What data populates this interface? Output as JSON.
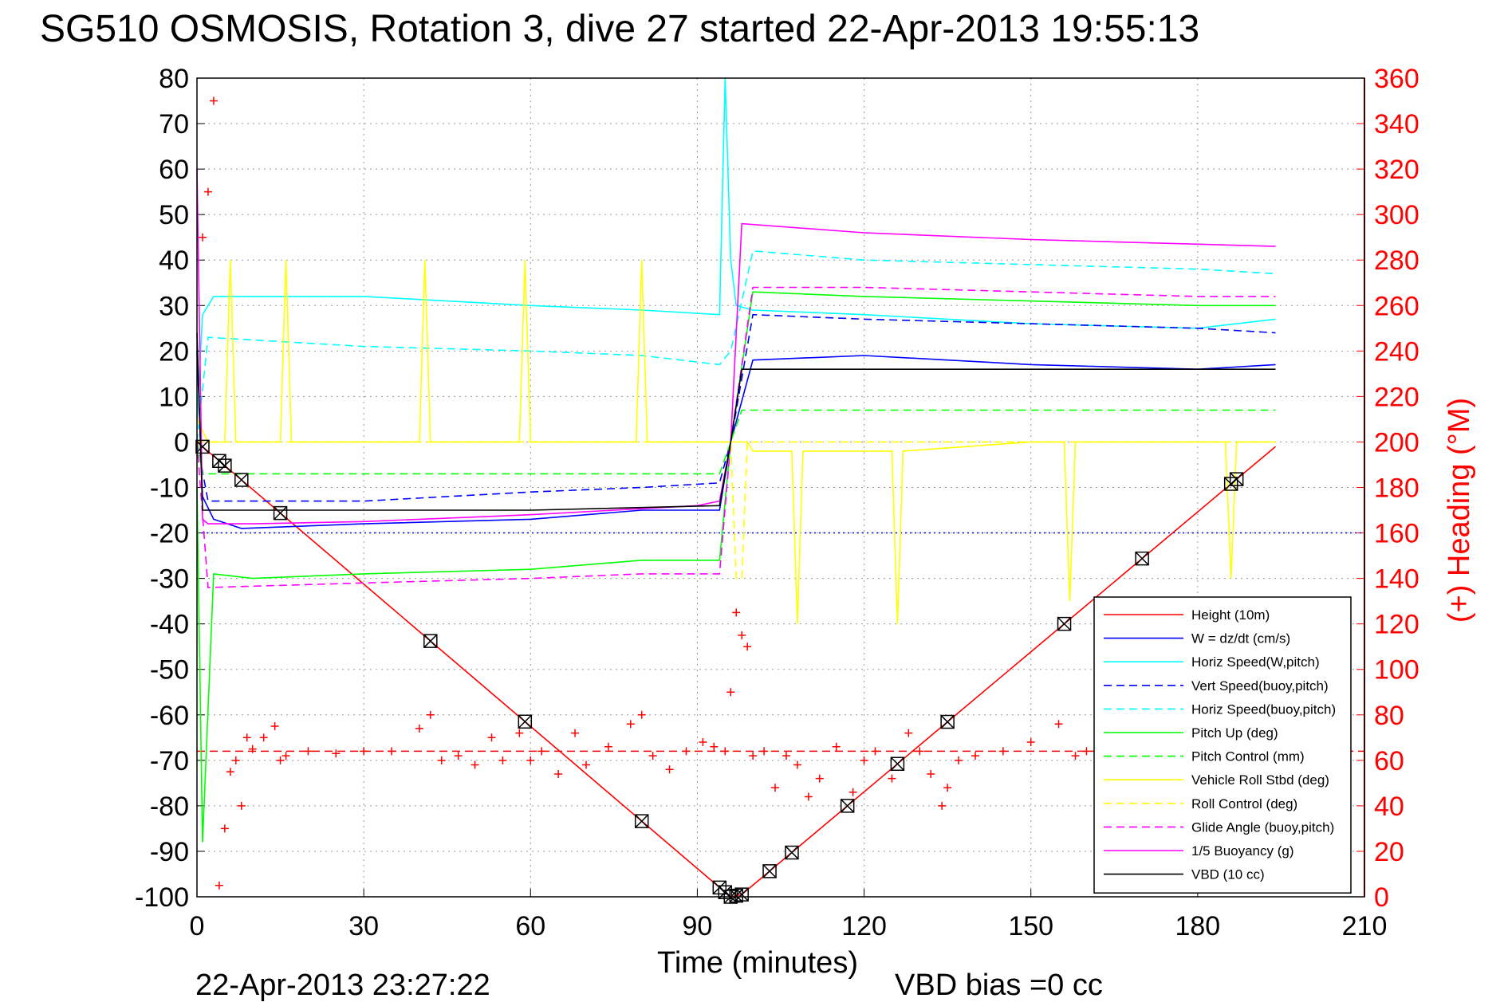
{
  "title": "SG510 OSMOSIS, Rotation 3, dive 27 started 22-Apr-2013 19:55:13",
  "footer": {
    "timestamp": "22-Apr-2013 23:27:22",
    "vbd_bias": "VBD bias =0 cc"
  },
  "colors": {
    "red": "#ff0000",
    "blue": "#0000ff",
    "cyan": "#00ffff",
    "green": "#00ff00",
    "yellow": "#ffff00",
    "magenta": "#ff00ff",
    "black": "#000000",
    "grid": "#888888"
  },
  "chart_data": {
    "type": "line",
    "xlabel": "Time (minutes)",
    "ylabel_right": "(+) Heading (°M)",
    "xlim": [
      0,
      210
    ],
    "ylim": [
      -100,
      80
    ],
    "ylim_right": [
      0,
      360
    ],
    "grid": true,
    "legend_position": "bottom-right",
    "x_ticks": [
      "0",
      "30",
      "60",
      "90",
      "120",
      "150",
      "180",
      "210"
    ],
    "y_ticks": [
      "80",
      "70",
      "60",
      "50",
      "40",
      "30",
      "20",
      "10",
      "0",
      "-10",
      "-20",
      "-30",
      "-40",
      "-50",
      "-60",
      "-70",
      "-80",
      "-90",
      "-100"
    ],
    "y_right_ticks": [
      "360",
      "340",
      "320",
      "300",
      "280",
      "260",
      "240",
      "220",
      "200",
      "180",
      "160",
      "140",
      "120",
      "100",
      "80",
      "60",
      "40",
      "20",
      "0"
    ],
    "legend": [
      {
        "label": "Height (10m)",
        "color": "#ff0000",
        "dash": "solid"
      },
      {
        "label": "W = dz/dt (cm/s)",
        "color": "#0000ff",
        "dash": "solid"
      },
      {
        "label": "Horiz Speed(W,pitch)",
        "color": "#00ffff",
        "dash": "solid"
      },
      {
        "label": "Vert Speed(buoy,pitch)",
        "color": "#0000ff",
        "dash": "dashed"
      },
      {
        "label": "Horiz Speed(buoy,pitch)",
        "color": "#00ffff",
        "dash": "dashed"
      },
      {
        "label": "Pitch Up (deg)",
        "color": "#00ff00",
        "dash": "solid"
      },
      {
        "label": "Pitch Control (mm)",
        "color": "#00ff00",
        "dash": "dashed"
      },
      {
        "label": "Vehicle Roll Stbd (deg)",
        "color": "#ffff00",
        "dash": "solid"
      },
      {
        "label": "Roll Control (deg)",
        "color": "#ffff00",
        "dash": "dashed"
      },
      {
        "label": "Glide Angle (buoy,pitch)",
        "color": "#ff00ff",
        "dash": "dashed"
      },
      {
        "label": "1/5 Buoyancy (g)",
        "color": "#ff00ff",
        "dash": "solid"
      },
      {
        "label": "VBD (10 cc)",
        "color": "#000000",
        "dash": "solid"
      }
    ],
    "series": [
      {
        "name": "Height (10m)",
        "axis": "left",
        "x": [
          0,
          95,
          96,
          98,
          194
        ],
        "y": [
          0,
          -99,
          -100,
          -99.5,
          -1
        ]
      },
      {
        "name": "W = dz/dt (cm/s)",
        "axis": "left",
        "x": [
          0,
          1,
          3,
          8,
          30,
          60,
          80,
          94,
          96,
          100,
          120,
          150,
          180,
          194
        ],
        "y": [
          20,
          -12,
          -17,
          -19,
          -18,
          -17,
          -15,
          -15,
          0,
          18,
          19,
          17,
          16,
          17
        ]
      },
      {
        "name": "Horiz Speed(W,pitch)",
        "axis": "left",
        "x": [
          0,
          1,
          3,
          10,
          30,
          60,
          80,
          94,
          95,
          96,
          97,
          100,
          120,
          150,
          180,
          194
        ],
        "y": [
          5,
          28,
          32,
          32,
          32,
          30,
          29,
          28,
          80,
          40,
          30,
          29,
          28,
          26,
          25,
          27
        ]
      },
      {
        "name": "Vert Speed(buoy,pitch)",
        "axis": "left",
        "x": [
          0,
          2,
          30,
          60,
          80,
          94,
          96,
          100,
          120,
          150,
          180,
          194
        ],
        "y": [
          0,
          -13,
          -13,
          -11,
          -10,
          -9,
          0,
          28,
          27,
          26,
          25,
          24
        ]
      },
      {
        "name": "Horiz Speed(buoy,pitch)",
        "axis": "left",
        "x": [
          0,
          2,
          30,
          60,
          80,
          94,
          96,
          100,
          120,
          150,
          180,
          194
        ],
        "y": [
          0,
          23,
          21,
          20,
          19,
          17,
          20,
          42,
          40,
          39,
          38,
          37
        ]
      },
      {
        "name": "Pitch Up (deg)",
        "axis": "left",
        "x": [
          0,
          1,
          3,
          10,
          30,
          60,
          80,
          94,
          96,
          100,
          120,
          150,
          180,
          194
        ],
        "y": [
          -10,
          -88,
          -29,
          -30,
          -29,
          -28,
          -26,
          -26,
          0,
          33,
          32,
          31,
          30,
          30
        ]
      },
      {
        "name": "Pitch Control (mm)",
        "axis": "left",
        "x": [
          0,
          1,
          30,
          60,
          94,
          96,
          98,
          194
        ],
        "y": [
          0,
          -7,
          -7,
          -7,
          -7,
          0,
          7,
          7
        ]
      },
      {
        "name": "Vehicle Roll Stbd (deg)",
        "axis": "left",
        "x": [
          0,
          2,
          3,
          5,
          6,
          7,
          15,
          16,
          17,
          40,
          41,
          42,
          58,
          59,
          60,
          79,
          80,
          81,
          94,
          96,
          99,
          100,
          107,
          108,
          109,
          120,
          125,
          126,
          127,
          150,
          156,
          157,
          158,
          185,
          186,
          187,
          194
        ],
        "y": [
          5,
          0,
          0,
          0,
          40,
          0,
          0,
          40,
          0,
          0,
          40,
          0,
          0,
          40,
          0,
          0,
          40,
          0,
          0,
          0,
          0,
          -2,
          -2,
          -40,
          -2,
          -2,
          -2,
          -40,
          -2,
          0,
          0,
          -35,
          0,
          0,
          -30,
          0,
          0
        ]
      },
      {
        "name": "Roll Control (deg)",
        "axis": "left",
        "x": [
          0,
          95,
          96,
          97,
          98,
          99,
          100,
          194
        ],
        "y": [
          0,
          0,
          0,
          -30,
          -30,
          0,
          0,
          0
        ]
      },
      {
        "name": "Glide Angle (buoy,pitch)",
        "axis": "left",
        "x": [
          0,
          2,
          30,
          60,
          80,
          94,
          96,
          100,
          120,
          150,
          180,
          194
        ],
        "y": [
          0,
          -32,
          -31,
          -30,
          -29,
          -29,
          0,
          34,
          34,
          33,
          32,
          32
        ]
      },
      {
        "name": "1/5 Buoyancy (g)",
        "axis": "left",
        "x": [
          0,
          1,
          2,
          10,
          30,
          60,
          90,
          94,
          96,
          98,
          120,
          150,
          180,
          194
        ],
        "y": [
          60,
          -17,
          -18,
          -18,
          -17.5,
          -16,
          -14,
          -13,
          0,
          48,
          46,
          44.5,
          43.5,
          43
        ]
      },
      {
        "name": "VBD (10 cc)",
        "axis": "left",
        "x": [
          0,
          1,
          2,
          30,
          60,
          94,
          96,
          98,
          120,
          150,
          194
        ],
        "y": [
          24,
          -15,
          -15,
          -15,
          -15,
          -14,
          0,
          16,
          16,
          16,
          16
        ]
      },
      {
        "name": "Heading",
        "axis": "right",
        "markers": "plus",
        "x": [
          1,
          2,
          3,
          4,
          5,
          6,
          7,
          8,
          9,
          10,
          12,
          14,
          15,
          16,
          20,
          25,
          30,
          35,
          40,
          42,
          44,
          47,
          50,
          53,
          55,
          58,
          60,
          62,
          65,
          68,
          70,
          74,
          78,
          80,
          82,
          85,
          88,
          91,
          93,
          95,
          96,
          97,
          98,
          99,
          100,
          102,
          104,
          106,
          108,
          110,
          112,
          115,
          118,
          120,
          122,
          125,
          128,
          130,
          132,
          134,
          135,
          137,
          140,
          145,
          150,
          155,
          158,
          160,
          163
        ],
        "y": [
          290,
          310,
          350,
          5,
          30,
          55,
          60,
          40,
          70,
          65,
          70,
          75,
          60,
          62,
          64,
          63,
          64,
          64,
          74,
          80,
          60,
          62,
          58,
          70,
          60,
          72,
          60,
          64,
          54,
          72,
          58,
          66,
          76,
          80,
          62,
          56,
          64,
          68,
          66,
          64,
          90,
          125,
          115,
          110,
          62,
          64,
          48,
          62,
          58,
          44,
          52,
          66,
          46,
          60,
          64,
          52,
          72,
          64,
          54,
          40,
          48,
          60,
          62,
          64,
          68,
          76,
          62,
          64,
          60
        ]
      }
    ],
    "reference_lines": [
      {
        "axis": "right",
        "y": 64,
        "color": "#ff0000",
        "dash": "dashed"
      },
      {
        "axis": "right",
        "y": 160,
        "color": "#0000ff",
        "dash": "dotted"
      }
    ],
    "height_markers_x": [
      1,
      4,
      5,
      8,
      15,
      42,
      59,
      80,
      94,
      95,
      96,
      97,
      98,
      103,
      107,
      117,
      126,
      135,
      156,
      170,
      186,
      187
    ]
  }
}
